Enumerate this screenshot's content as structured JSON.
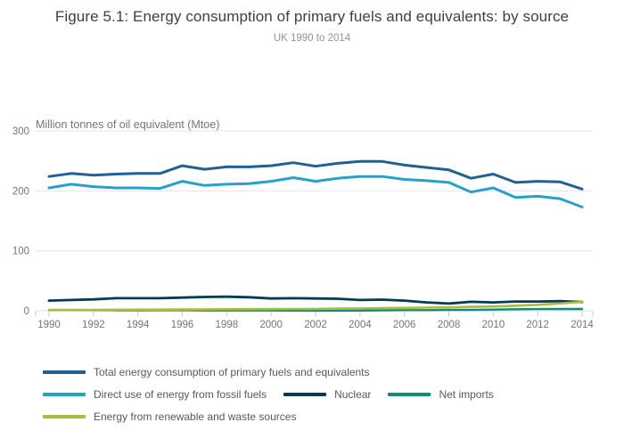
{
  "chart_data": {
    "type": "line",
    "title": "Figure 5.1: Energy consumption of primary fuels and equivalents: by source",
    "subtitle": "UK 1990 to 2014",
    "ylabel": "Million tonnes of oil equivalent (Mtoe)",
    "x": [
      1990,
      1991,
      1992,
      1993,
      1994,
      1995,
      1996,
      1997,
      1998,
      1999,
      2000,
      2001,
      2002,
      2003,
      2004,
      2005,
      2006,
      2007,
      2008,
      2009,
      2010,
      2011,
      2012,
      2013,
      2014
    ],
    "x_tick_labels": [
      "1990",
      "1992",
      "1994",
      "1996",
      "1998",
      "2000",
      "2002",
      "2004",
      "2006",
      "2008",
      "2010",
      "2012",
      "2014"
    ],
    "y_ticks": [
      0,
      100,
      200,
      300
    ],
    "ylim": [
      0,
      300
    ],
    "grid": true,
    "legend_position": "bottom-left",
    "series": [
      {
        "name": "Total energy consumption of primary fuels and equivalents",
        "color": "#206095",
        "values": [
          224,
          229,
          226,
          228,
          229,
          229,
          242,
          236,
          240,
          240,
          242,
          247,
          241,
          246,
          249,
          249,
          243,
          239,
          235,
          221,
          228,
          214,
          216,
          215,
          203
        ]
      },
      {
        "name": "Direct use of energy from fossil fuels",
        "color": "#27a0cc",
        "values": [
          205,
          211,
          207,
          205,
          205,
          204,
          216,
          209,
          211,
          212,
          216,
          222,
          216,
          221,
          224,
          224,
          219,
          217,
          214,
          198,
          205,
          189,
          191,
          187,
          173
        ]
      },
      {
        "name": "Nuclear",
        "color": "#003c57",
        "values": [
          17,
          18,
          19,
          21,
          21,
          21,
          22,
          23,
          23.5,
          22.5,
          20.5,
          21,
          20.5,
          20,
          18,
          18.5,
          17,
          14,
          12,
          15,
          14,
          15.5,
          15.5,
          16,
          14.5
        ]
      },
      {
        "name": "Net imports",
        "color": "#118c7b",
        "values": [
          1.0,
          1.2,
          1.0,
          0.8,
          0.8,
          0.9,
          0.9,
          0.5,
          0.5,
          0.4,
          0.4,
          0.3,
          0.2,
          0.1,
          0.3,
          0.8,
          1.0,
          1.0,
          1.5,
          1.5,
          2.0,
          2.5,
          2.8,
          3.0,
          3.0
        ]
      },
      {
        "name": "Energy from renewable and waste sources",
        "color": "#a8bd3a",
        "values": [
          1.3,
          1.4,
          1.5,
          1.7,
          1.8,
          2.0,
          2.1,
          2.3,
          2.5,
          2.7,
          2.8,
          2.9,
          3.1,
          3.5,
          3.9,
          4.4,
          4.8,
          5.2,
          5.8,
          6.6,
          7.2,
          8.4,
          9.9,
          12.2,
          14.9
        ]
      }
    ],
    "legend_rows": [
      [
        0
      ],
      [
        1,
        2,
        3
      ],
      [
        4
      ]
    ]
  },
  "colors": {
    "grid": "#e4e4e4",
    "axis": "#d9dde0",
    "tick": "#c3cbd1",
    "tick_label": "#6f777b",
    "axis_title": "#6f777b",
    "title": "#404042",
    "subtitle": "#8f9193",
    "legend_text": "#595959"
  }
}
